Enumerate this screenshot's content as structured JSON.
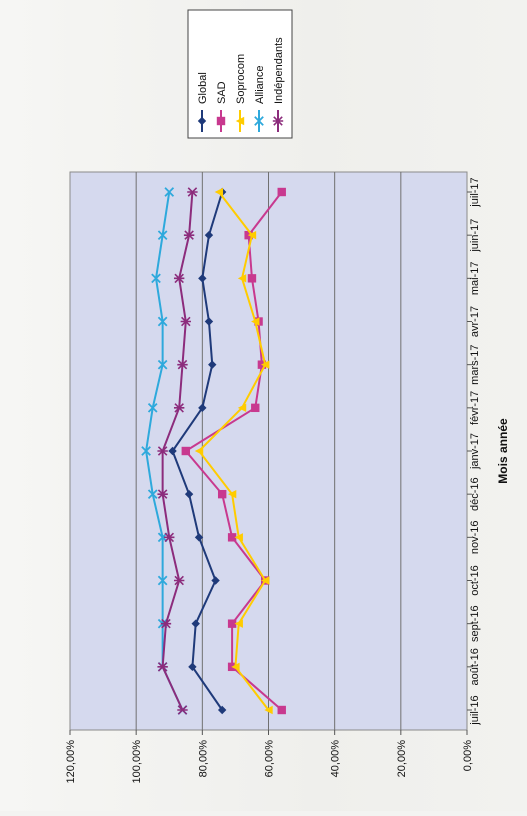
{
  "chart_data": {
    "type": "line",
    "title": "",
    "xlabel": "Mois année",
    "ylabel": "",
    "ylim": [
      0,
      120
    ],
    "ytick_labels": [
      "0,00%",
      "20,00%",
      "40,00%",
      "60,00%",
      "80,00%",
      "100,00%",
      "120,00%"
    ],
    "categories": [
      "juil-16",
      "août-16",
      "sept-16",
      "oct-16",
      "nov-16",
      "déc-16",
      "janv-17",
      "févr-17",
      "mars-17",
      "avr-17",
      "mai-17",
      "juin-17",
      "juil-17"
    ],
    "legend_position": "top-right",
    "grid": true,
    "series": [
      {
        "name": "Global",
        "marker": "diamond",
        "color": "#1f3a7a",
        "values": [
          74,
          83,
          82,
          76,
          81,
          84,
          89,
          80,
          77,
          78,
          80,
          78,
          74
        ]
      },
      {
        "name": "SAD",
        "marker": "square",
        "color": "#c8398f",
        "values": [
          56,
          71,
          71,
          61,
          71,
          74,
          85,
          64,
          62,
          63,
          65,
          66,
          56
        ]
      },
      {
        "name": "Soprocom",
        "marker": "triangle",
        "color": "#ffcc00",
        "values": [
          60,
          70,
          69,
          61,
          69,
          71,
          81,
          68,
          61,
          64,
          68,
          65,
          75
        ]
      },
      {
        "name": "Alliance",
        "marker": "x",
        "color": "#2ea9dc",
        "values": [
          86,
          92,
          92,
          92,
          92,
          95,
          97,
          95,
          92,
          92,
          94,
          92,
          90
        ]
      },
      {
        "name": "Indépendants",
        "marker": "star",
        "color": "#8c2c7c",
        "values": [
          86,
          92,
          91,
          87,
          90,
          92,
          92,
          87,
          86,
          85,
          87,
          84,
          83
        ]
      }
    ]
  }
}
